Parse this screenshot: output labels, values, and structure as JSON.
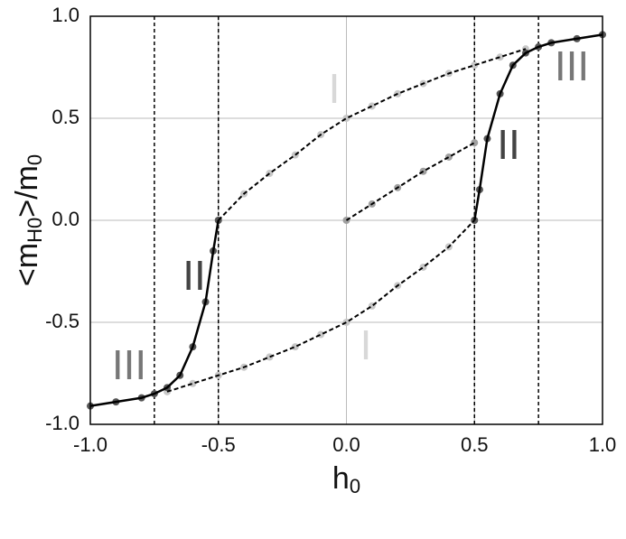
{
  "chart_data": {
    "type": "line",
    "xlabel_parts": [
      "h",
      "0"
    ],
    "ylabel_parts": [
      "<m",
      "H0",
      ">/m",
      "0"
    ],
    "xlim": [
      -1,
      1
    ],
    "ylim": [
      -1,
      1
    ],
    "xticks": [
      {
        "value": -1,
        "label": "-1.0"
      },
      {
        "value": -0.5,
        "label": "-0.5"
      },
      {
        "value": 0,
        "label": "0.0"
      },
      {
        "value": 0.5,
        "label": "0.5"
      },
      {
        "value": 1,
        "label": "1.0"
      }
    ],
    "yticks": [
      {
        "value": -1,
        "label": "-1.0"
      },
      {
        "value": -0.5,
        "label": "-0.5"
      },
      {
        "value": 0,
        "label": "0.0"
      },
      {
        "value": 0.5,
        "label": "0.5"
      },
      {
        "value": 1,
        "label": "1.0"
      }
    ],
    "grid": true,
    "vlines": [
      -0.75,
      -0.5,
      0.5,
      0.75
    ],
    "series": [
      {
        "color": "#000000",
        "style": "dashed",
        "marker_color": "#c8c8c8",
        "x": [
          -0.5,
          -0.4,
          -0.3,
          -0.2,
          -0.1,
          0,
          0.1,
          0.2,
          0.3,
          0.4,
          0.5,
          0.6,
          0.7
        ],
        "values": [
          0,
          0.13,
          0.23,
          0.32,
          0.42,
          0.5,
          0.56,
          0.62,
          0.67,
          0.72,
          0.76,
          0.8,
          0.84
        ]
      },
      {
        "color": "#000000",
        "style": "dashed",
        "marker_color": "#c8c8c8",
        "x": [
          -0.7,
          -0.6,
          -0.5,
          -0.4,
          -0.3,
          -0.2,
          -0.1,
          0,
          0.1,
          0.2,
          0.3,
          0.4,
          0.5
        ],
        "values": [
          -0.84,
          -0.8,
          -0.76,
          -0.72,
          -0.67,
          -0.62,
          -0.56,
          -0.5,
          -0.42,
          -0.32,
          -0.23,
          -0.13,
          0
        ]
      },
      {
        "color": "#000000",
        "style": "dashed",
        "marker_color": "#a0a0a0",
        "x": [
          0,
          0.1,
          0.2,
          0.3,
          0.4,
          0.5
        ],
        "values": [
          0,
          0.08,
          0.16,
          0.24,
          0.31,
          0.38
        ]
      },
      {
        "color": "#000000",
        "style": "solid",
        "marker_color": "#555555",
        "x": [
          0.5,
          0.52,
          0.55,
          0.6,
          0.65,
          0.7,
          0.75,
          0.8,
          0.9,
          1
        ],
        "values": [
          0,
          0.15,
          0.4,
          0.62,
          0.76,
          0.82,
          0.85,
          0.87,
          0.89,
          0.91
        ]
      },
      {
        "color": "#000000",
        "style": "solid",
        "marker_color": "#555555",
        "x": [
          -1,
          -0.9,
          -0.8,
          -0.75,
          -0.7,
          -0.65,
          -0.6,
          -0.55,
          -0.52,
          -0.5
        ],
        "values": [
          -0.91,
          -0.89,
          -0.87,
          -0.85,
          -0.82,
          -0.76,
          -0.62,
          -0.4,
          -0.15,
          0
        ]
      }
    ],
    "annotations": [
      {
        "text": "I",
        "color": "#d8d8d8"
      },
      {
        "text": "I",
        "color": "#d8d8d8"
      },
      {
        "text": "II",
        "color": "#444444"
      },
      {
        "text": "II",
        "color": "#444444"
      },
      {
        "text": "III",
        "color": "#777777"
      },
      {
        "text": "III",
        "color": "#777777"
      }
    ]
  }
}
